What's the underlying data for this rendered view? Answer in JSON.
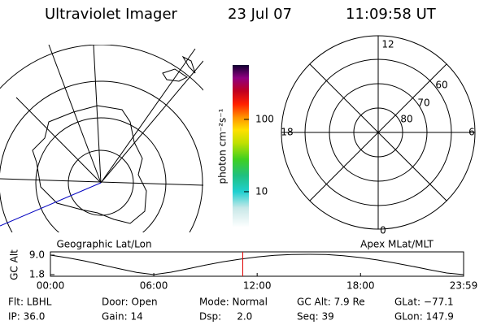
{
  "header": {
    "title": "Ultraviolet Imager",
    "date": "23 Jul 07",
    "time": "11:09:58 UT"
  },
  "left_panel": {
    "label": "Geographic Lat/Lon"
  },
  "colorbar": {
    "label": "photon cm⁻²s⁻¹",
    "log": true,
    "lim": [
      3.2,
      565
    ],
    "ticks": [
      10,
      100
    ]
  },
  "right_panel": {
    "label": "Apex MLat/MLT",
    "mlt_labels": [
      "12",
      "6",
      "0",
      "18"
    ],
    "lat_labels": [
      "60",
      "70",
      "80"
    ]
  },
  "chart_data": {
    "type": "line",
    "ylabel": "GC Alt",
    "color": "#000000",
    "x": [
      0,
      1,
      2,
      3,
      4,
      5,
      6,
      7,
      8,
      9,
      10,
      11,
      12,
      13,
      14,
      15,
      16,
      17,
      18,
      19,
      20,
      21,
      22,
      23,
      23.983
    ],
    "values": [
      9.0,
      8.0,
      6.8,
      5.4,
      4.0,
      2.6,
      1.8,
      2.7,
      4.0,
      5.3,
      6.5,
      7.5,
      8.3,
      8.9,
      9.2,
      9.3,
      9.2,
      8.8,
      8.1,
      7.2,
      6.1,
      4.9,
      3.6,
      2.4,
      1.8
    ],
    "xlim": [
      0,
      23.983
    ],
    "ylim": [
      1.2,
      10.2
    ],
    "xticks": [
      {
        "value": 0,
        "label": "00:00"
      },
      {
        "value": 6,
        "label": "06:00"
      },
      {
        "value": 12,
        "label": "12:00"
      },
      {
        "value": 18,
        "label": "18:00"
      },
      {
        "value": 23.983,
        "label": "23:59"
      }
    ],
    "yticks": [
      1.8,
      {
        "value": 9.0,
        "label": "9.0"
      }
    ],
    "current_time": 11.166,
    "current_color": "#e00000"
  },
  "footer": {
    "rows": [
      [
        "Flt: LBHL",
        "Door: Open",
        "Mode: Normal",
        "GC Alt: 7.9 Re",
        "GLat: −77.1"
      ],
      [
        "IP: 36.0",
        "Gain: 14",
        "Dsp:     2.0",
        "Seq: 39",
        "GLon: 147.9"
      ]
    ]
  }
}
